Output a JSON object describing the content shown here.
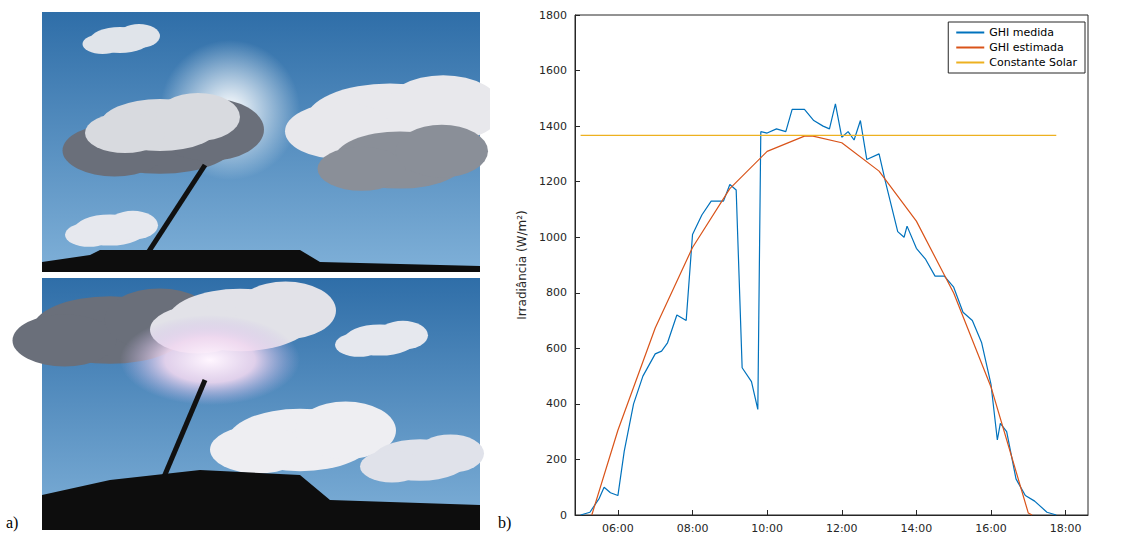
{
  "panel_labels": [
    "a)",
    "b)"
  ],
  "chart_data": {
    "type": "line",
    "ylabel": "Irradiância (W/m²)",
    "xlim": [
      4.85,
      18.6
    ],
    "xticks": [
      {
        "value": 6,
        "label": "06:00"
      },
      {
        "value": 8,
        "label": "08:00"
      },
      {
        "value": 10,
        "label": "10:00"
      },
      {
        "value": 12,
        "label": "12:00"
      },
      {
        "value": 14,
        "label": "14:00"
      },
      {
        "value": 16,
        "label": "16:00"
      },
      {
        "value": 18,
        "label": "18:00"
      }
    ],
    "ylim": [
      0,
      1800
    ],
    "yticks": [
      0,
      200,
      400,
      600,
      800,
      1000,
      1200,
      1400,
      1600,
      1800
    ],
    "grid": false,
    "legend": "upper right",
    "series": [
      {
        "name": "GHI medida",
        "color": "#0072BD",
        "x": [
          5.0,
          5.25,
          5.5,
          5.63,
          5.8,
          6.0,
          6.17,
          6.42,
          6.67,
          7.0,
          7.17,
          7.33,
          7.58,
          7.83,
          8.0,
          8.25,
          8.5,
          8.83,
          9.0,
          9.17,
          9.33,
          9.58,
          9.75,
          9.83,
          10.0,
          10.25,
          10.5,
          10.67,
          11.0,
          11.25,
          11.5,
          11.67,
          11.83,
          12.0,
          12.17,
          12.33,
          12.5,
          12.67,
          13.0,
          13.17,
          13.5,
          13.67,
          13.75,
          14.0,
          14.25,
          14.5,
          14.75,
          15.0,
          15.25,
          15.5,
          15.75,
          16.0,
          16.17,
          16.25,
          16.42,
          16.67,
          16.92,
          17.17,
          17.5,
          17.75
        ],
        "values": [
          0,
          10,
          60,
          100,
          80,
          70,
          230,
          400,
          500,
          580,
          590,
          620,
          720,
          700,
          1010,
          1080,
          1130,
          1130,
          1190,
          1170,
          530,
          480,
          380,
          1380,
          1375,
          1390,
          1380,
          1460,
          1460,
          1420,
          1400,
          1390,
          1480,
          1360,
          1380,
          1350,
          1420,
          1280,
          1300,
          1200,
          1020,
          1000,
          1040,
          960,
          920,
          860,
          860,
          820,
          730,
          700,
          620,
          470,
          270,
          330,
          300,
          130,
          70,
          50,
          10,
          0
        ]
      },
      {
        "name": "GHI estimada",
        "color": "#D95319",
        "x": [
          5.3,
          6.0,
          7.0,
          8.0,
          9.0,
          10.0,
          11.0,
          11.2,
          12.0,
          13.0,
          14.0,
          15.0,
          16.0,
          17.0,
          17.1
        ],
        "values": [
          0,
          305,
          673,
          963,
          1175,
          1309,
          1364,
          1365,
          1340,
          1238,
          1058,
          799,
          461,
          7,
          0
        ]
      },
      {
        "name": "Constante Solar",
        "color": "#EDB120",
        "x": [
          5.0,
          17.75
        ],
        "values": [
          1367,
          1367
        ]
      }
    ]
  }
}
